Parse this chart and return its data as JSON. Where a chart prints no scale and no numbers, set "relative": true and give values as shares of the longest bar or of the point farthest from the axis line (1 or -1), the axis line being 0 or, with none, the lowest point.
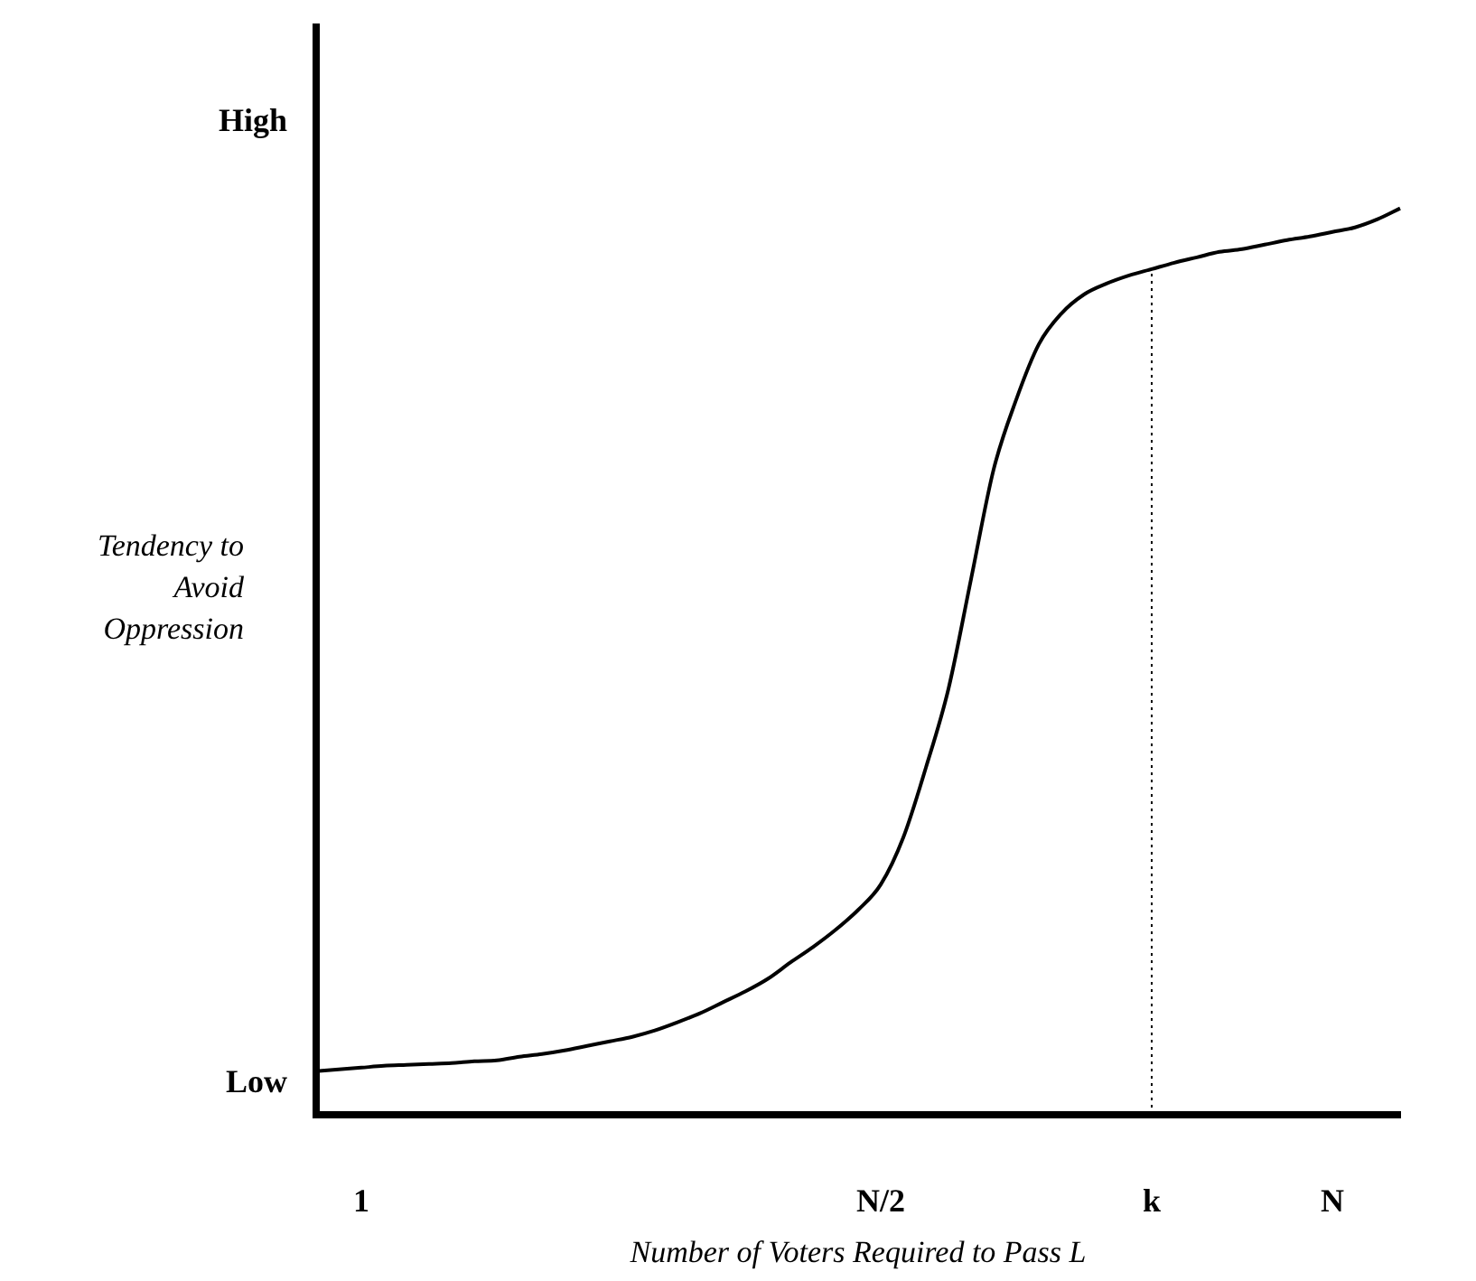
{
  "chart_data": {
    "type": "line",
    "xlabel": "Number of Voters Required to Pass L",
    "ylabel": "Tendency to Avoid Oppression",
    "relative": true,
    "categories": [
      null,
      null,
      "1",
      null,
      null,
      null,
      null,
      null,
      null,
      null,
      null,
      null,
      null,
      null,
      null,
      null,
      null,
      null,
      null,
      null,
      null,
      null,
      null,
      null,
      null,
      "N/2",
      null,
      null,
      null,
      null,
      null,
      null,
      null,
      null,
      null,
      null,
      null,
      "k",
      null,
      null,
      null,
      null,
      null,
      null,
      null,
      "N",
      null,
      null,
      null
    ],
    "values": [
      0.048,
      0.05,
      0.052,
      0.054,
      0.055,
      0.056,
      0.057,
      0.059,
      0.06,
      0.064,
      0.067,
      0.071,
      0.076,
      0.081,
      0.086,
      0.093,
      0.102,
      0.112,
      0.124,
      0.136,
      0.15,
      0.168,
      0.185,
      0.204,
      0.226,
      0.254,
      0.306,
      0.383,
      0.47,
      0.591,
      0.712,
      0.789,
      0.85,
      0.884,
      0.905,
      0.917,
      0.926,
      0.933,
      0.94,
      0.946,
      0.952,
      0.955,
      0.96,
      0.965,
      0.969,
      0.974,
      0.979,
      0.988,
      1.0
    ],
    "color": "#000000",
    "annotations": [
      "High",
      "Low"
    ],
    "ref_lines": [
      {
        "axis": "x",
        "value": "k",
        "line_style": "dotted",
        "color": "#000000"
      }
    ],
    "grid": false,
    "legend": false,
    "marker": "none",
    "line_style": "solid"
  }
}
